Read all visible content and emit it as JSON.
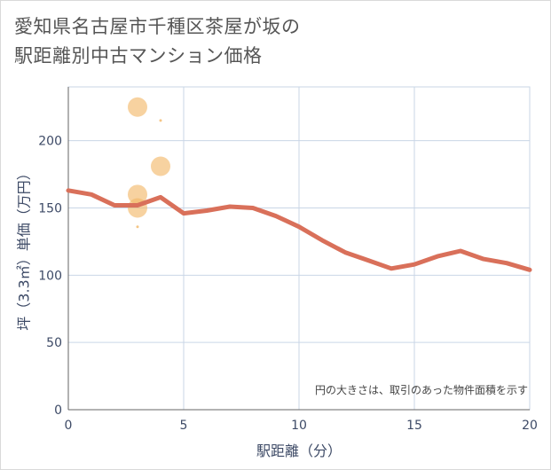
{
  "title_line1": "愛知県名古屋市千種区茶屋が坂の",
  "title_line2": "駅距離別中古マンション価格",
  "chart_data": {
    "type": "scatter",
    "title": "愛知県名古屋市千種区茶屋が坂の駅距離別中古マンション価格",
    "xlabel": "駅距離（分）",
    "ylabel": "坪（3.3㎡）単価（万円）",
    "xlim": [
      0,
      20
    ],
    "ylim": [
      0,
      240
    ],
    "xticks": [
      0,
      5,
      10,
      15,
      20
    ],
    "yticks": [
      0,
      50,
      100,
      150,
      200
    ],
    "note": "円の大きさは、取引のあった物件面積を示す",
    "colors": {
      "bubble": "#f2b766",
      "line": "#d9705a",
      "grid": "#c9d6e6"
    },
    "bubbles": [
      {
        "x": 3,
        "y": 225,
        "size": 10
      },
      {
        "x": 3,
        "y": 160,
        "size": 10
      },
      {
        "x": 3,
        "y": 150,
        "size": 10
      },
      {
        "x": 3,
        "y": 136,
        "size": 1
      },
      {
        "x": 4,
        "y": 215,
        "size": 1
      },
      {
        "x": 4,
        "y": 181,
        "size": 10
      }
    ],
    "trend_line": {
      "x": [
        0,
        1,
        2,
        3,
        4,
        5,
        6,
        7,
        8,
        9,
        10,
        11,
        12,
        13,
        14,
        15,
        16,
        17,
        18,
        19,
        20
      ],
      "y": [
        163,
        160,
        152,
        152,
        158,
        146,
        148,
        151,
        150,
        144,
        136,
        126,
        117,
        111,
        105,
        108,
        114,
        118,
        112,
        109,
        104
      ]
    }
  }
}
